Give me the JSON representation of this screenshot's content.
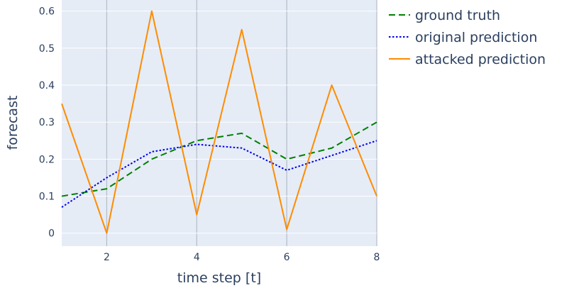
{
  "chart_data": {
    "type": "line",
    "title": "",
    "xlabel": "time step [t]",
    "ylabel": "forecast",
    "x": [
      1,
      2,
      3,
      4,
      5,
      6,
      7,
      8
    ],
    "xlim": [
      1,
      8
    ],
    "ylim": [
      -0.035,
      0.63
    ],
    "xticks": [
      2,
      4,
      6,
      8
    ],
    "xtick_labels": [
      "2",
      "4",
      "6",
      "8"
    ],
    "yticks": [
      0,
      0.1,
      0.2,
      0.3,
      0.4,
      0.5,
      0.6
    ],
    "ytick_labels": [
      "0",
      "0.1",
      "0.2",
      "0.3",
      "0.4",
      "0.5",
      "0.6"
    ],
    "grid": true,
    "legend_position": "right",
    "plot_background": "#e5ecf6",
    "series": [
      {
        "name": "ground truth",
        "color": "#008000",
        "dash": "dashed",
        "values": [
          0.1,
          0.12,
          0.2,
          0.25,
          0.27,
          0.2,
          0.23,
          0.3
        ]
      },
      {
        "name": "original prediction",
        "color": "#0000ee",
        "dash": "dotted",
        "values": [
          0.07,
          0.15,
          0.22,
          0.24,
          0.23,
          0.17,
          0.21,
          0.25
        ]
      },
      {
        "name": "attacked prediction",
        "color": "#ff8c00",
        "dash": "solid",
        "values": [
          0.35,
          0.0,
          0.6,
          0.05,
          0.55,
          0.01,
          0.4,
          0.1
        ]
      }
    ]
  }
}
